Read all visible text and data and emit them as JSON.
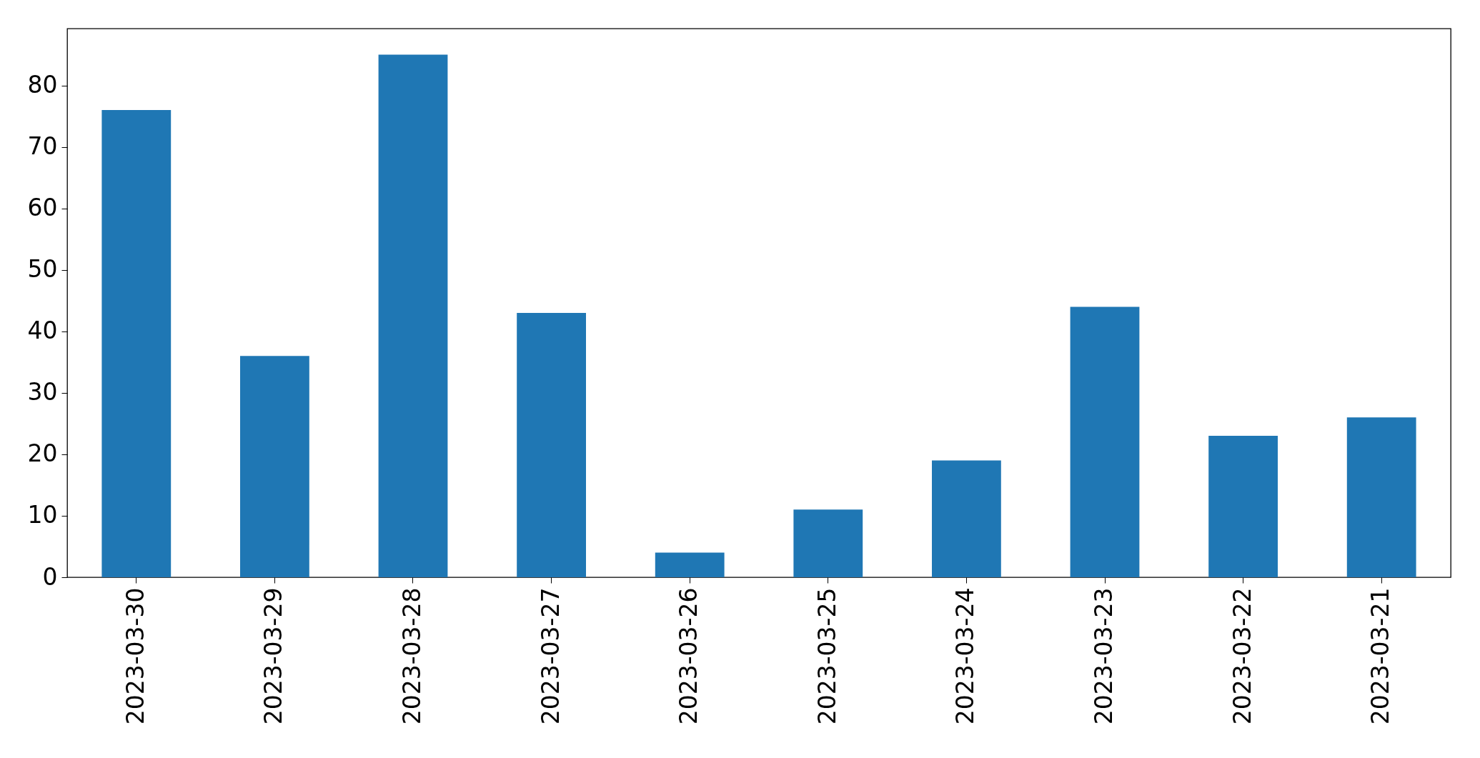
{
  "chart_data": {
    "type": "bar",
    "categories": [
      "2023-03-30",
      "2023-03-29",
      "2023-03-28",
      "2023-03-27",
      "2023-03-26",
      "2023-03-25",
      "2023-03-24",
      "2023-03-23",
      "2023-03-22",
      "2023-03-21"
    ],
    "values": [
      76,
      36,
      85,
      43,
      4,
      11,
      19,
      44,
      23,
      26
    ],
    "color": "#1f77b4",
    "ylim": [
      0,
      89.25
    ],
    "yticks": [
      0,
      10,
      20,
      30,
      40,
      50,
      60,
      70,
      80
    ],
    "grid": false
  }
}
